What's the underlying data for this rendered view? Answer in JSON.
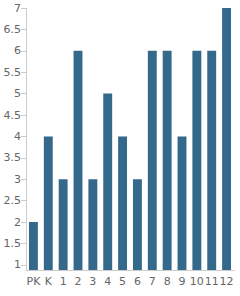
{
  "chart_data": {
    "type": "bar",
    "categories": [
      "PK",
      "K",
      "1",
      "2",
      "3",
      "4",
      "5",
      "6",
      "7",
      "8",
      "9",
      "10",
      "11",
      "12"
    ],
    "values": [
      2,
      4,
      3,
      6,
      3,
      5,
      4,
      3,
      6,
      6,
      4,
      6,
      6,
      7
    ],
    "color": "#35698c",
    "ylim": [
      0.88,
      7
    ],
    "yticks": [
      1,
      1.5,
      2,
      2.5,
      3,
      3.5,
      4,
      4.5,
      5,
      5.5,
      6,
      6.5,
      7
    ],
    "grid": false
  }
}
